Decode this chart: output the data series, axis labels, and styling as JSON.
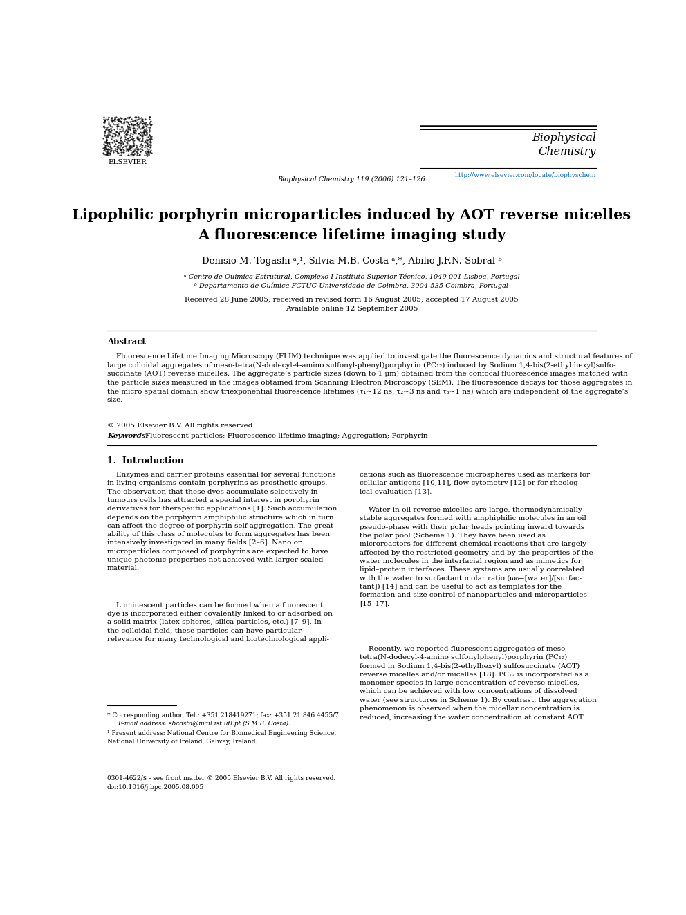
{
  "background_color": "#ffffff",
  "page_width": 9.92,
  "page_height": 13.23,
  "dpi": 100,
  "elsevier_logo_text": "ELSEVIER",
  "journal_name": "Biophysical\nChemistry",
  "journal_citation": "Biophysical Chemistry 119 (2006) 121–126",
  "journal_url": "http://www.elsevier.com/locate/biophyschem",
  "title_line1": "Lipophilic porphyrin microparticles induced by AOT reverse micelles",
  "title_line2": "A fluorescence lifetime imaging study",
  "affil_a": "a Centro de Química Estrutural, Complexo I-Instituto Superior Técnico, 1049-001 Lisboa, Portugal",
  "affil_b": "b Departamento de Química FCTUC-Universidade de Coimbra, 3004-535 Coimbra, Portugal",
  "received_line": "Received 28 June 2005; received in revised form 16 August 2005; accepted 17 August 2005",
  "available_line": "Available online 12 September 2005",
  "abstract_title": "Abstract",
  "copyright_text": "© 2005 Elsevier B.V. All rights reserved.",
  "keywords_label": "Keywords:",
  "keywords_text": "Fluorescent particles; Fluorescence lifetime imaging; Aggregation; Porphyrin",
  "footer_copyright": "0301-4622/$ - see front matter © 2005 Elsevier B.V. All rights reserved.",
  "footer_doi": "doi:10.1016/j.bpc.2005.08.005",
  "link_color": "#0066cc",
  "text_color": "#000000"
}
